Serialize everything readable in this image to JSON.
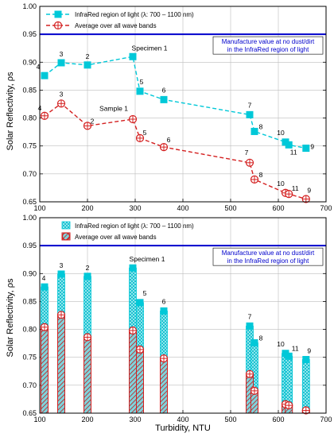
{
  "figure": {
    "y_axis_label": "Solar Reflectivity, ρs",
    "x_axis_label": "Turbidity, NTU"
  },
  "colors": {
    "ir_series": "#00c8d8",
    "avg_series": "#d42020",
    "reference_line": "#0000cc"
  },
  "chart_data": [
    {
      "type": "line",
      "xlim": [
        100,
        700
      ],
      "ylim": [
        0.65,
        1.0
      ],
      "x_ticks": [
        100,
        200,
        300,
        400,
        500,
        600,
        700
      ],
      "y_ticks": [
        0.65,
        0.7,
        0.75,
        0.8,
        0.85,
        0.9,
        0.95,
        1.0
      ],
      "x_tick_labels": [
        "100",
        "200",
        "300",
        "400",
        "500",
        "600",
        "700"
      ],
      "y_tick_labels": [
        "0.65",
        "0.70",
        "0.75",
        "0.80",
        "0.85",
        "0.90",
        "0.95",
        "1.00"
      ],
      "xlabel": "",
      "ylabel": "Solar Reflectivity, ρs",
      "grid": true,
      "legend_position": "top-left",
      "reference_line": {
        "y": 0.95,
        "label_line1": "Manufacture value at no dust/dirt",
        "label_line2": "in the InfraRed region of light"
      },
      "group_labels": [
        {
          "text": "Specimen 1",
          "x": 330,
          "y": 0.921
        },
        {
          "text": "Sample 1",
          "x": 255,
          "y": 0.813
        }
      ],
      "series": [
        {
          "name": "InfraRed region of light (λ: 700 – 1100 nm)",
          "style": "cyan-square-dashed",
          "points": [
            {
              "label": "4",
              "x": 110,
              "y": 0.876
            },
            {
              "label": "3",
              "x": 145,
              "y": 0.899
            },
            {
              "label": "2",
              "x": 200,
              "y": 0.895
            },
            {
              "label": "1",
              "x": 295,
              "y": 0.91
            },
            {
              "label": "5",
              "x": 310,
              "y": 0.848
            },
            {
              "label": "6",
              "x": 360,
              "y": 0.833
            },
            {
              "label": "7",
              "x": 540,
              "y": 0.806
            },
            {
              "label": "8",
              "x": 550,
              "y": 0.776
            },
            {
              "label": "10",
              "x": 615,
              "y": 0.757
            },
            {
              "label": "11",
              "x": 622,
              "y": 0.752
            },
            {
              "label": "9",
              "x": 658,
              "y": 0.746
            }
          ]
        },
        {
          "name": "Average over all wave bands",
          "style": "red-circle-dashed",
          "points": [
            {
              "label": "4",
              "x": 110,
              "y": 0.804
            },
            {
              "label": "3",
              "x": 145,
              "y": 0.826
            },
            {
              "label": "2",
              "x": 200,
              "y": 0.786
            },
            {
              "label": "1",
              "x": 295,
              "y": 0.798
            },
            {
              "label": "5",
              "x": 310,
              "y": 0.764
            },
            {
              "label": "6",
              "x": 360,
              "y": 0.748
            },
            {
              "label": "7",
              "x": 540,
              "y": 0.72
            },
            {
              "label": "8",
              "x": 550,
              "y": 0.69
            },
            {
              "label": "10",
              "x": 615,
              "y": 0.666
            },
            {
              "label": "11",
              "x": 622,
              "y": 0.664
            },
            {
              "label": "9",
              "x": 658,
              "y": 0.655
            }
          ]
        }
      ]
    },
    {
      "type": "bar",
      "xlim": [
        100,
        700
      ],
      "ylim": [
        0.65,
        1.0
      ],
      "x_ticks": [
        100,
        200,
        300,
        400,
        500,
        600,
        700
      ],
      "y_ticks": [
        0.65,
        0.7,
        0.75,
        0.8,
        0.85,
        0.9,
        0.95,
        1.0
      ],
      "x_tick_labels": [
        "100",
        "200",
        "300",
        "400",
        "500",
        "600",
        "700"
      ],
      "y_tick_labels": [
        "0.65",
        "0.70",
        "0.75",
        "0.80",
        "0.85",
        "0.90",
        "0.95",
        "1.00"
      ],
      "xlabel": "Turbidity, NTU",
      "ylabel": "Solar Reflectivity, ρs",
      "grid": true,
      "legend_position": "top-left",
      "reference_line": {
        "y": 0.95,
        "label_line1": "Manufacture value at no dust/dirt",
        "label_line2": "in the InfraRed region of light"
      },
      "group_labels": [
        {
          "text": "Specimen 1",
          "x": 325,
          "y": 0.922
        }
      ],
      "series": [
        {
          "name": "InfraRed region of light (λ: 700 – 1100 nm)",
          "style": "cyan-hatched-bar",
          "points": [
            {
              "label": "4",
              "x": 110,
              "y": 0.876
            },
            {
              "label": "3",
              "x": 145,
              "y": 0.899
            },
            {
              "label": "2",
              "x": 200,
              "y": 0.895
            },
            {
              "label": "1",
              "x": 295,
              "y": 0.91
            },
            {
              "label": "5",
              "x": 310,
              "y": 0.848
            },
            {
              "label": "6",
              "x": 360,
              "y": 0.833
            },
            {
              "label": "7",
              "x": 540,
              "y": 0.806
            },
            {
              "label": "8",
              "x": 550,
              "y": 0.776
            },
            {
              "label": "10",
              "x": 615,
              "y": 0.757
            },
            {
              "label": "11",
              "x": 622,
              "y": 0.752
            },
            {
              "label": "9",
              "x": 658,
              "y": 0.746
            }
          ]
        },
        {
          "name": "Average over all wave bands",
          "style": "red-hatched-bar",
          "points": [
            {
              "label": "4",
              "x": 110,
              "y": 0.804
            },
            {
              "label": "3",
              "x": 145,
              "y": 0.826
            },
            {
              "label": "2",
              "x": 200,
              "y": 0.786
            },
            {
              "label": "1",
              "x": 295,
              "y": 0.798
            },
            {
              "label": "5",
              "x": 310,
              "y": 0.764
            },
            {
              "label": "6",
              "x": 360,
              "y": 0.748
            },
            {
              "label": "7",
              "x": 540,
              "y": 0.72
            },
            {
              "label": "8",
              "x": 550,
              "y": 0.69
            },
            {
              "label": "10",
              "x": 615,
              "y": 0.666
            },
            {
              "label": "11",
              "x": 622,
              "y": 0.664
            },
            {
              "label": "9",
              "x": 658,
              "y": 0.655
            }
          ]
        }
      ]
    }
  ]
}
